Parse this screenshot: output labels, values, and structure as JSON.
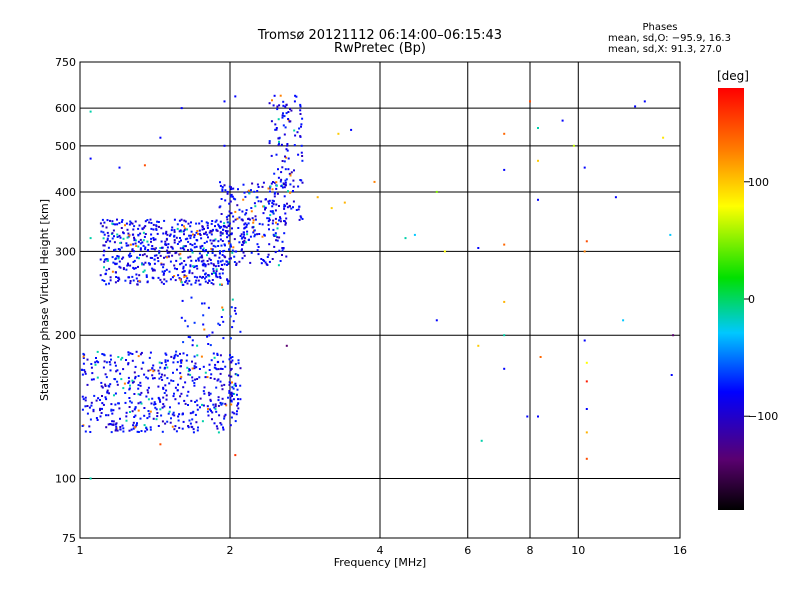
{
  "header": {
    "title": "Tromsø 20121112 06:14:00–06:15:43",
    "subtitle": "RwPretec (Bp)",
    "phase_heading": "Phases",
    "stat_o": "mean, sd,O: −95.9, 16.3",
    "stat_x": "mean, sd,X: 91.3, 27.0"
  },
  "colorbar": {
    "label": "[deg]",
    "ticks": [
      "100",
      "0",
      "−100"
    ],
    "tick_values": [
      100,
      0,
      -100
    ],
    "range": [
      -180,
      180
    ]
  },
  "chart_data": {
    "type": "scatter",
    "xlabel": "Frequency [MHz]",
    "ylabel": "Stationary phase Virtual Height [km]",
    "x_scale": "log",
    "y_scale": "log",
    "xlim": [
      1,
      16
    ],
    "ylim": [
      75,
      750
    ],
    "x_ticks": [
      1,
      2,
      4,
      6,
      8,
      10,
      16
    ],
    "x_tick_labels": [
      "1",
      "2",
      "4",
      "6",
      "8",
      "10",
      "16"
    ],
    "y_ticks": [
      75,
      100,
      200,
      300,
      400,
      500,
      600,
      750
    ],
    "y_tick_labels": [
      "75",
      "100",
      "200",
      "300",
      "400",
      "500",
      "600",
      "750"
    ],
    "grid": true,
    "point_clusters": [
      {
        "x_range": [
          1.0,
          2.1
        ],
        "h_range": [
          125,
          185
        ],
        "phase": -110,
        "count": 550
      },
      {
        "x_range": [
          1.1,
          2.0
        ],
        "h_range": [
          255,
          350
        ],
        "phase": -110,
        "count": 600
      },
      {
        "x_range": [
          1.9,
          2.6
        ],
        "h_range": [
          280,
          420
        ],
        "phase": -110,
        "count": 260
      },
      {
        "x_range": [
          2.4,
          2.8
        ],
        "h_range": [
          340,
          640
        ],
        "phase": -110,
        "count": 140
      },
      {
        "x_range": [
          1.6,
          2.1
        ],
        "h_range": [
          190,
          240
        ],
        "phase": -100,
        "count": 40
      }
    ],
    "points": [
      {
        "x": 1.05,
        "y": 590,
        "phase": -20
      },
      {
        "x": 1.05,
        "y": 320,
        "phase": -20
      },
      {
        "x": 1.05,
        "y": 100,
        "phase": -20
      },
      {
        "x": 1.6,
        "y": 600,
        "phase": -110
      },
      {
        "x": 1.95,
        "y": 620,
        "phase": -110
      },
      {
        "x": 2.05,
        "y": 635,
        "phase": -110
      },
      {
        "x": 2.7,
        "y": 620,
        "phase": -110
      },
      {
        "x": 3.3,
        "y": 530,
        "phase": 100
      },
      {
        "x": 3.5,
        "y": 540,
        "phase": -110
      },
      {
        "x": 3.0,
        "y": 390,
        "phase": 110
      },
      {
        "x": 3.2,
        "y": 370,
        "phase": 100
      },
      {
        "x": 3.4,
        "y": 380,
        "phase": 110
      },
      {
        "x": 3.9,
        "y": 420,
        "phase": 130
      },
      {
        "x": 4.5,
        "y": 320,
        "phase": -20
      },
      {
        "x": 4.7,
        "y": 325,
        "phase": -30
      },
      {
        "x": 5.2,
        "y": 400,
        "phase": 40
      },
      {
        "x": 5.4,
        "y": 300,
        "phase": 80
      },
      {
        "x": 5.2,
        "y": 215,
        "phase": -110
      },
      {
        "x": 6.3,
        "y": 305,
        "phase": -110
      },
      {
        "x": 6.3,
        "y": 190,
        "phase": 100
      },
      {
        "x": 6.4,
        "y": 120,
        "phase": -20
      },
      {
        "x": 7.1,
        "y": 530,
        "phase": 140
      },
      {
        "x": 7.1,
        "y": 445,
        "phase": -110
      },
      {
        "x": 7.1,
        "y": 310,
        "phase": 140
      },
      {
        "x": 7.1,
        "y": 235,
        "phase": 110
      },
      {
        "x": 7.1,
        "y": 200,
        "phase": -20
      },
      {
        "x": 7.1,
        "y": 170,
        "phase": -110
      },
      {
        "x": 8.0,
        "y": 620,
        "phase": 150
      },
      {
        "x": 8.3,
        "y": 545,
        "phase": -20
      },
      {
        "x": 8.3,
        "y": 465,
        "phase": 100
      },
      {
        "x": 8.3,
        "y": 385,
        "phase": -110
      },
      {
        "x": 8.4,
        "y": 180,
        "phase": 140
      },
      {
        "x": 8.3,
        "y": 135,
        "phase": -110
      },
      {
        "x": 7.9,
        "y": 135,
        "phase": -110
      },
      {
        "x": 9.3,
        "y": 565,
        "phase": -110
      },
      {
        "x": 9.8,
        "y": 500,
        "phase": 60
      },
      {
        "x": 10.3,
        "y": 450,
        "phase": -110
      },
      {
        "x": 10.4,
        "y": 315,
        "phase": 150
      },
      {
        "x": 10.3,
        "y": 300,
        "phase": 130
      },
      {
        "x": 10.3,
        "y": 195,
        "phase": -110
      },
      {
        "x": 10.4,
        "y": 175,
        "phase": 80
      },
      {
        "x": 10.4,
        "y": 160,
        "phase": 170
      },
      {
        "x": 10.4,
        "y": 140,
        "phase": -110
      },
      {
        "x": 10.4,
        "y": 125,
        "phase": 110
      },
      {
        "x": 10.4,
        "y": 110,
        "phase": 150
      },
      {
        "x": 11.9,
        "y": 390,
        "phase": -110
      },
      {
        "x": 12.3,
        "y": 215,
        "phase": -30
      },
      {
        "x": 13.0,
        "y": 605,
        "phase": -110
      },
      {
        "x": 13.6,
        "y": 620,
        "phase": -110
      },
      {
        "x": 14.8,
        "y": 520,
        "phase": 90
      },
      {
        "x": 15.3,
        "y": 325,
        "phase": -30
      },
      {
        "x": 15.5,
        "y": 200,
        "phase": -140
      },
      {
        "x": 15.4,
        "y": 165,
        "phase": -110
      },
      {
        "x": 1.9,
        "y": 125,
        "phase": -20
      },
      {
        "x": 2.05,
        "y": 112,
        "phase": 160
      },
      {
        "x": 1.45,
        "y": 118,
        "phase": 150
      },
      {
        "x": 1.35,
        "y": 455,
        "phase": 150
      },
      {
        "x": 1.2,
        "y": 450,
        "phase": -110
      },
      {
        "x": 1.45,
        "y": 520,
        "phase": -110
      },
      {
        "x": 1.05,
        "y": 470,
        "phase": -110
      },
      {
        "x": 2.6,
        "y": 190,
        "phase": -140
      },
      {
        "x": 1.95,
        "y": 500,
        "phase": -110
      }
    ]
  }
}
